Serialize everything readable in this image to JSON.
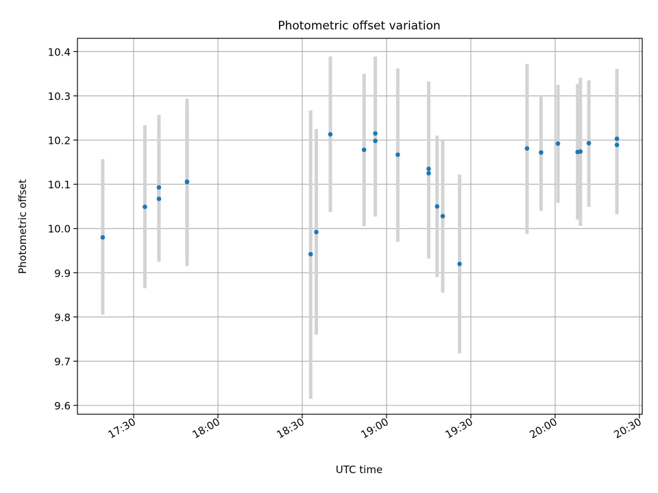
{
  "chart_data": {
    "type": "scatter",
    "title": "Photometric offset variation",
    "xlabel": "UTC time",
    "ylabel": "Photometric offset",
    "x_tick_labels": [
      "17:30",
      "18:00",
      "18:30",
      "19:00",
      "19:30",
      "20:00",
      "20:30"
    ],
    "x_tick_times": [
      "17:30",
      "18:00",
      "18:30",
      "19:00",
      "19:30",
      "20:00",
      "20:30"
    ],
    "xlim": [
      "17:10",
      "20:31"
    ],
    "ylim": [
      9.58,
      10.43
    ],
    "y_tick_labels": [
      "9.6",
      "9.7",
      "9.8",
      "9.9",
      "10.0",
      "10.1",
      "10.2",
      "10.3",
      "10.4"
    ],
    "y_ticks": [
      9.6,
      9.7,
      9.8,
      9.9,
      10.0,
      10.1,
      10.2,
      10.3,
      10.4
    ],
    "grid": true,
    "colors": {
      "points": "#1f77b4",
      "error_bars": "#d3d3d3",
      "grid": "#b0b0b0"
    },
    "points": [
      {
        "x": "17:19",
        "y": 9.98,
        "low": 9.805,
        "high": 10.157
      },
      {
        "x": "17:34",
        "y": 10.049,
        "low": 9.865,
        "high": 10.234
      },
      {
        "x": "17:39",
        "y": 10.067,
        "low": 9.925,
        "high": 10.215
      },
      {
        "x": "17:39",
        "y": 10.093,
        "low": 9.93,
        "high": 10.257
      },
      {
        "x": "17:49",
        "y": 10.106,
        "low": 9.94,
        "high": 10.272
      },
      {
        "x": "17:49",
        "y": 10.105,
        "low": 9.915,
        "high": 10.294
      },
      {
        "x": "18:33",
        "y": 9.942,
        "low": 9.615,
        "high": 10.267
      },
      {
        "x": "18:35",
        "y": 9.992,
        "low": 9.76,
        "high": 10.225
      },
      {
        "x": "18:40",
        "y": 10.213,
        "low": 10.037,
        "high": 10.389
      },
      {
        "x": "18:52",
        "y": 10.178,
        "low": 10.005,
        "high": 10.35
      },
      {
        "x": "18:56",
        "y": 10.198,
        "low": 10.027,
        "high": 10.37
      },
      {
        "x": "18:56",
        "y": 10.215,
        "low": 10.04,
        "high": 10.389
      },
      {
        "x": "19:04",
        "y": 10.167,
        "low": 9.97,
        "high": 10.362
      },
      {
        "x": "19:15",
        "y": 10.135,
        "low": 9.937,
        "high": 10.332
      },
      {
        "x": "19:15",
        "y": 10.125,
        "low": 9.932,
        "high": 10.317
      },
      {
        "x": "19:18",
        "y": 10.05,
        "low": 9.89,
        "high": 10.21
      },
      {
        "x": "19:20",
        "y": 10.028,
        "low": 9.855,
        "high": 10.2
      },
      {
        "x": "19:26",
        "y": 9.92,
        "low": 9.718,
        "high": 10.122
      },
      {
        "x": "19:50",
        "y": 10.181,
        "low": 9.988,
        "high": 10.372
      },
      {
        "x": "19:55",
        "y": 10.172,
        "low": 10.04,
        "high": 10.3
      },
      {
        "x": "20:01",
        "y": 10.192,
        "low": 10.058,
        "high": 10.325
      },
      {
        "x": "20:08",
        "y": 10.173,
        "low": 10.02,
        "high": 10.327
      },
      {
        "x": "20:09",
        "y": 10.174,
        "low": 10.006,
        "high": 10.341
      },
      {
        "x": "20:12",
        "y": 10.193,
        "low": 10.049,
        "high": 10.335
      },
      {
        "x": "20:22",
        "y": 10.203,
        "low": 10.043,
        "high": 10.361
      },
      {
        "x": "20:22",
        "y": 10.189,
        "low": 10.032,
        "high": 10.345
      }
    ]
  }
}
